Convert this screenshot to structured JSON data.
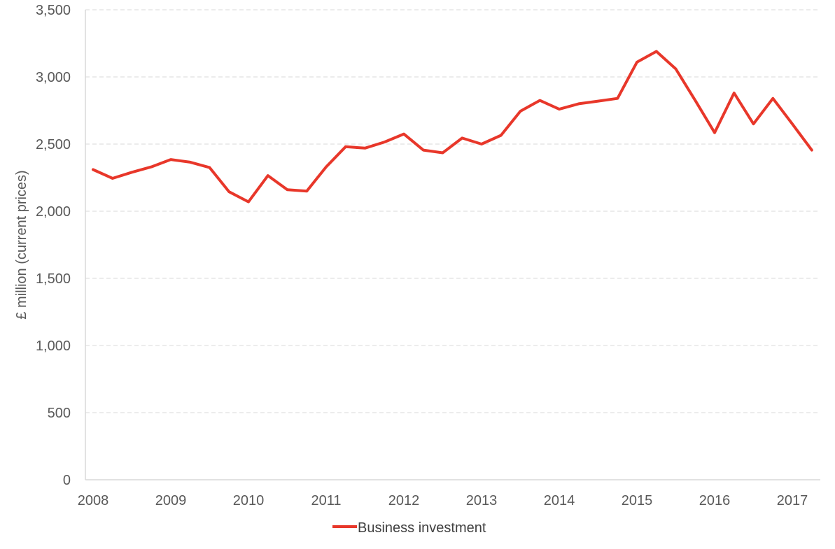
{
  "chart_data": {
    "type": "line",
    "ylabel": "£ million (current prices)",
    "xlabel": "",
    "ylim": [
      0,
      3500
    ],
    "yticks": [
      "0",
      "500",
      "1,000",
      "1,500",
      "2,000",
      "2,500",
      "3,000",
      "3,500"
    ],
    "ytick_values": [
      0,
      500,
      1000,
      1500,
      2000,
      2500,
      3000,
      3500
    ],
    "xticks": [
      "2008",
      "2009",
      "2010",
      "2011",
      "2012",
      "2013",
      "2014",
      "2015",
      "2016",
      "2017"
    ],
    "grid": true,
    "legend_position": "bottom",
    "series": [
      {
        "name": "Business investment",
        "color": "#e8372a",
        "x": [
          "2008 Q1",
          "2008 Q2",
          "2008 Q3",
          "2008 Q4",
          "2009 Q1",
          "2009 Q2",
          "2009 Q3",
          "2009 Q4",
          "2010 Q1",
          "2010 Q2",
          "2010 Q3",
          "2010 Q4",
          "2011 Q1",
          "2011 Q2",
          "2011 Q3",
          "2011 Q4",
          "2012 Q1",
          "2012 Q2",
          "2012 Q3",
          "2012 Q4",
          "2013 Q1",
          "2013 Q2",
          "2013 Q3",
          "2013 Q4",
          "2014 Q1",
          "2014 Q2",
          "2014 Q3",
          "2014 Q4",
          "2015 Q1",
          "2015 Q2",
          "2015 Q3",
          "2015 Q4",
          "2016 Q1",
          "2016 Q2",
          "2016 Q3",
          "2016 Q4",
          "2017 Q1",
          "2017 Q2"
        ],
        "values": [
          2310,
          2245,
          2290,
          2330,
          2385,
          2365,
          2325,
          2145,
          2070,
          2265,
          2160,
          2150,
          2330,
          2480,
          2470,
          2515,
          2575,
          2455,
          2435,
          2545,
          2500,
          2565,
          2745,
          2825,
          2760,
          2800,
          2820,
          2840,
          3110,
          3190,
          3060,
          2825,
          2585,
          2880,
          2650,
          2840,
          2650,
          2455
        ]
      }
    ]
  }
}
